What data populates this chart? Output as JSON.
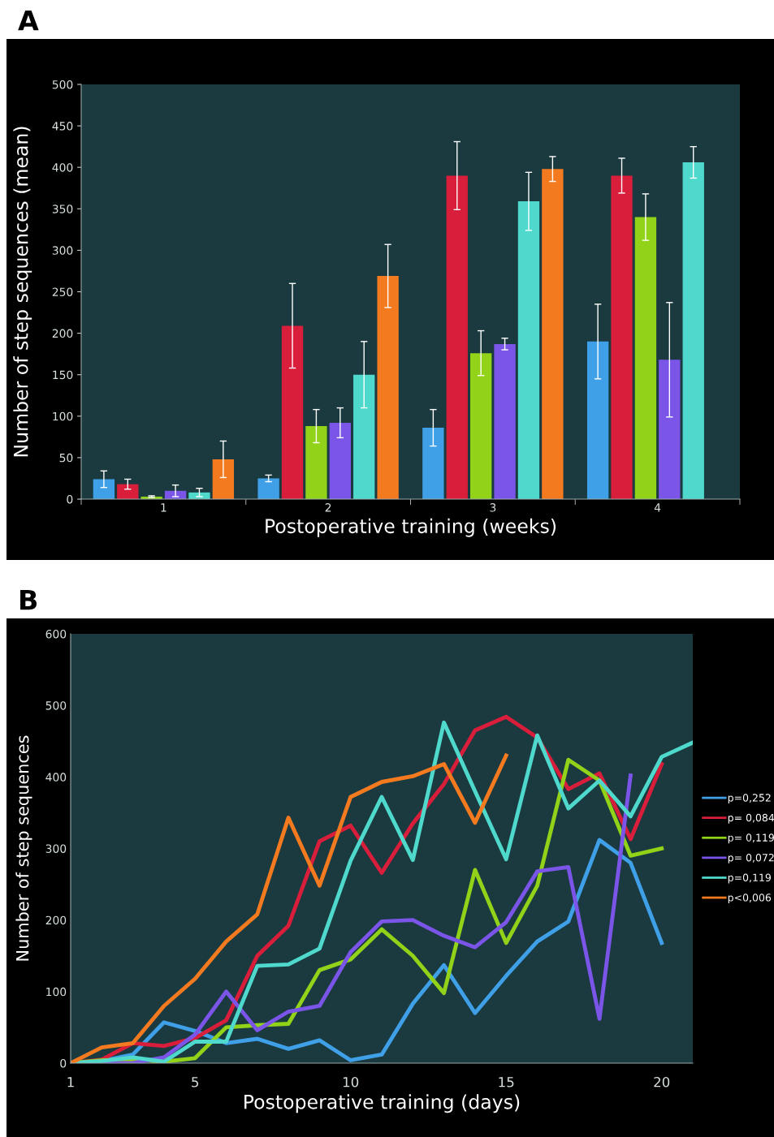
{
  "chart_data": [
    {
      "type": "bar",
      "title": "A",
      "xlabel": "Postoperative training (weeks)",
      "ylabel": "Number of step sequences (mean)",
      "categories": [
        "1",
        "2",
        "3",
        "4"
      ],
      "ylim": [
        0,
        500
      ],
      "yticks": [
        0,
        50,
        100,
        150,
        200,
        250,
        300,
        350,
        400,
        450,
        500
      ],
      "grid": false,
      "legend": false,
      "series": [
        {
          "color": "#3fa0e8",
          "values": [
            24,
            25,
            86,
            190
          ],
          "errors": [
            10,
            4,
            22,
            45
          ]
        },
        {
          "color": "#d81e3a",
          "values": [
            18,
            209,
            390,
            390
          ],
          "errors": [
            6,
            51,
            41,
            21
          ]
        },
        {
          "color": "#92d31a",
          "values": [
            3,
            88,
            176,
            340
          ],
          "errors": [
            1,
            20,
            27,
            28
          ]
        },
        {
          "color": "#7a55e8",
          "values": [
            10,
            92,
            187,
            168
          ],
          "errors": [
            7,
            18,
            7,
            69
          ]
        },
        {
          "color": "#4fd8cc",
          "values": [
            8,
            150,
            359,
            406
          ],
          "errors": [
            5,
            40,
            35,
            19
          ]
        },
        {
          "color": "#f47a20",
          "values": [
            48,
            269,
            398,
            null
          ],
          "errors": [
            22,
            38,
            15,
            null
          ]
        }
      ]
    },
    {
      "type": "line",
      "title": "B",
      "xlabel": "Postoperative training (days)",
      "ylabel": "Number of step sequences",
      "x": [
        1,
        2,
        3,
        4,
        5,
        6,
        7,
        8,
        9,
        10,
        11,
        12,
        13,
        14,
        15,
        16,
        17,
        18,
        19,
        20,
        21
      ],
      "xlim": [
        1,
        21
      ],
      "xticks": [
        1,
        5,
        10,
        15,
        20
      ],
      "ylim": [
        0,
        600
      ],
      "yticks": [
        0,
        100,
        200,
        300,
        400,
        500,
        600
      ],
      "grid": false,
      "legend": "right",
      "marker": "none",
      "line_style": "solid",
      "series": [
        {
          "name": "p=0,252",
          "color": "#3fa0e8",
          "values": [
            0,
            3,
            12,
            57,
            45,
            28,
            34,
            20,
            32,
            4,
            12,
            83,
            137,
            70,
            122,
            170,
            198,
            312,
            280,
            168,
            null
          ]
        },
        {
          "name": "p= 0,084",
          "color": "#d81e3a",
          "values": [
            0,
            5,
            28,
            24,
            35,
            60,
            150,
            192,
            310,
            332,
            266,
            335,
            390,
            465,
            484,
            455,
            383,
            405,
            313,
            418,
            null
          ]
        },
        {
          "name": "p= 0,119",
          "color": "#92d31a",
          "values": [
            0,
            4,
            5,
            2,
            7,
            50,
            53,
            55,
            130,
            145,
            187,
            150,
            98,
            270,
            168,
            248,
            424,
            395,
            290,
            300,
            null
          ]
        },
        {
          "name": "p= 0,072",
          "color": "#7a55e8",
          "values": [
            0,
            0,
            0,
            8,
            40,
            100,
            46,
            72,
            80,
            155,
            198,
            200,
            178,
            162,
            197,
            268,
            274,
            62,
            402,
            null,
            null
          ]
        },
        {
          "name": "p=0,119",
          "color": "#4fd8cc",
          "values": [
            0,
            3,
            8,
            2,
            30,
            30,
            136,
            138,
            160,
            283,
            372,
            284,
            476,
            380,
            285,
            458,
            356,
            395,
            345,
            428,
            448
          ]
        },
        {
          "name": "p<0,006",
          "color": "#f47a20",
          "values": [
            0,
            22,
            28,
            80,
            118,
            170,
            208,
            343,
            248,
            372,
            393,
            401,
            418,
            336,
            430,
            null,
            null,
            null,
            null,
            null,
            null
          ]
        }
      ]
    }
  ]
}
